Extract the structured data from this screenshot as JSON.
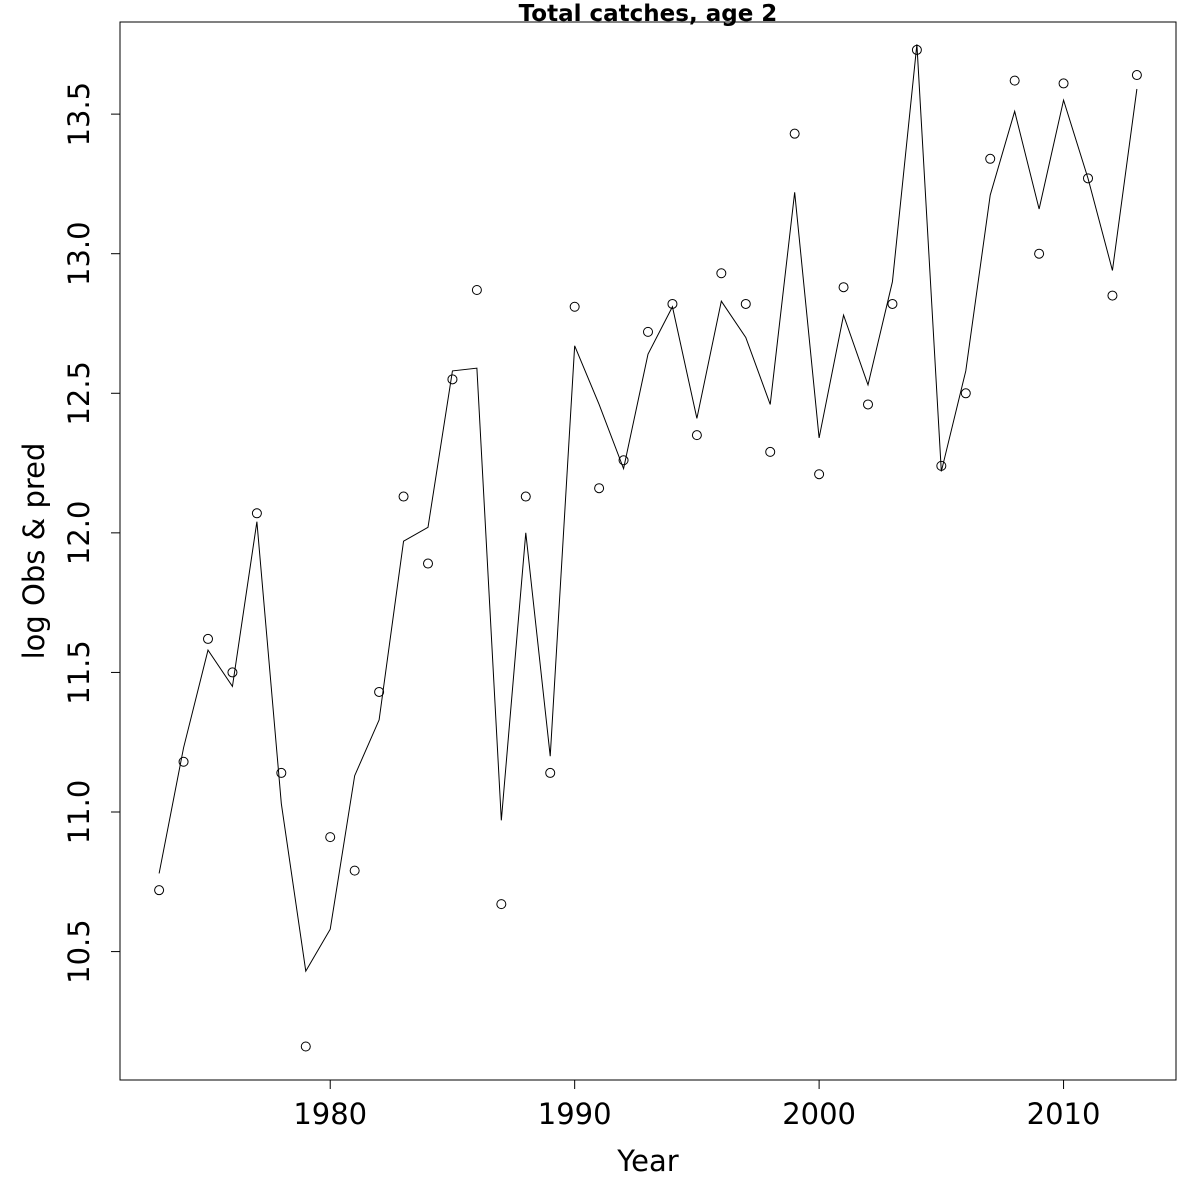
{
  "chart_data": {
    "type": "line",
    "title": "Total catches, age 2",
    "xlabel": "Year",
    "ylabel": "log Obs & pred",
    "xlim": [
      1971.4,
      2014.6
    ],
    "ylim": [
      10.04,
      13.83
    ],
    "x_ticks": [
      1980,
      1990,
      2000,
      2010
    ],
    "x_tick_labels": [
      "1980",
      "1990",
      "2000",
      "2010"
    ],
    "y_ticks": [
      10.5,
      11.0,
      11.5,
      12.0,
      12.5,
      13.0,
      13.5
    ],
    "y_tick_labels": [
      "10.5",
      "11.0",
      "11.5",
      "12.0",
      "12.5",
      "13.0",
      "13.5"
    ],
    "grid": false,
    "legend": "none",
    "x": [
      1973,
      1974,
      1975,
      1976,
      1977,
      1978,
      1979,
      1980,
      1981,
      1982,
      1983,
      1984,
      1985,
      1986,
      1987,
      1988,
      1989,
      1990,
      1991,
      1992,
      1993,
      1994,
      1995,
      1996,
      1997,
      1998,
      1999,
      2000,
      2001,
      2002,
      2003,
      2004,
      2005,
      2006,
      2007,
      2008,
      2009,
      2010,
      2011,
      2012,
      2013
    ],
    "series": [
      {
        "style": "points",
        "values": [
          10.72,
          11.18,
          11.62,
          11.5,
          12.07,
          11.14,
          10.16,
          10.91,
          10.79,
          11.43,
          12.13,
          11.89,
          12.55,
          12.87,
          10.67,
          12.13,
          11.14,
          12.81,
          12.16,
          12.26,
          12.72,
          12.82,
          12.35,
          12.93,
          12.82,
          12.29,
          13.43,
          12.21,
          12.88,
          12.46,
          12.82,
          13.73,
          12.24,
          12.5,
          13.34,
          13.62,
          13.0,
          13.61,
          13.27,
          12.85,
          13.64
        ]
      },
      {
        "style": "line",
        "values": [
          10.78,
          11.23,
          11.58,
          11.45,
          12.04,
          11.03,
          10.43,
          10.58,
          11.13,
          11.33,
          11.97,
          12.02,
          12.58,
          12.59,
          10.97,
          12.0,
          11.2,
          12.67,
          12.46,
          12.23,
          12.64,
          12.81,
          12.41,
          12.83,
          12.7,
          12.46,
          13.22,
          12.34,
          12.78,
          12.53,
          12.9,
          13.75,
          12.22,
          12.58,
          13.21,
          13.51,
          13.16,
          13.55,
          13.27,
          12.94,
          13.59
        ]
      }
    ]
  }
}
